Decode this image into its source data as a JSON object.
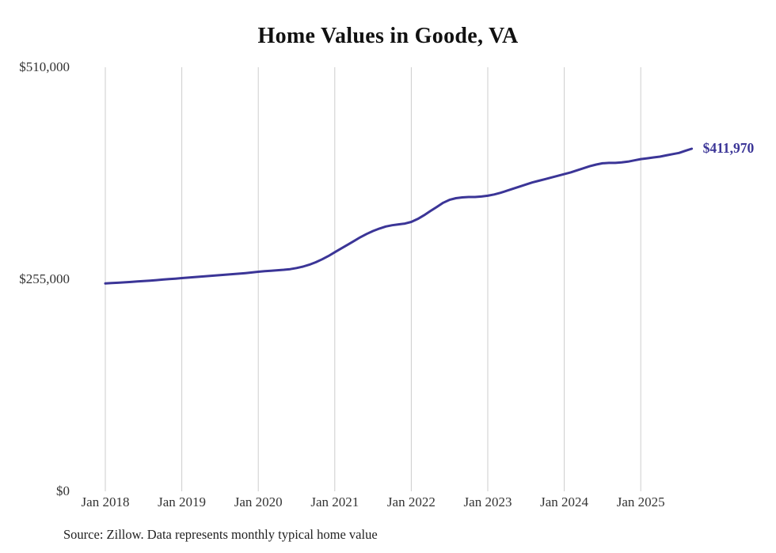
{
  "title": "Home Values in Goode, VA",
  "source_note": "Source: Zillow. Data represents monthly typical home value",
  "colors": {
    "line": "#3b3597",
    "grid": "#cccccc",
    "axis_text": "#333333",
    "background": "#ffffff"
  },
  "chart_data": {
    "type": "line",
    "title": "Home Values in Goode, VA",
    "xlabel": "",
    "ylabel": "",
    "ylim": [
      0,
      510000
    ],
    "y_ticks": [
      0,
      255000,
      510000
    ],
    "y_tick_labels": [
      "$0",
      "$255,000",
      "$510,000"
    ],
    "x_tick_labels": [
      "Jan 2018",
      "Jan 2019",
      "Jan 2020",
      "Jan 2021",
      "Jan 2022",
      "Jan 2023",
      "Jan 2024",
      "Jan 2025"
    ],
    "grid": "vertical-only",
    "legend_position": "none",
    "x_start": "2018-01",
    "x_end": "2025-09",
    "annotation": {
      "text": "$411,970",
      "value": 411970
    },
    "series": [
      {
        "name": "Monthly typical home value",
        "values": [
          250000,
          250400,
          250800,
          251300,
          251800,
          252300,
          252800,
          253400,
          254000,
          254600,
          255200,
          255800,
          256400,
          257000,
          257600,
          258200,
          258800,
          259400,
          260000,
          260600,
          261200,
          261800,
          262400,
          263200,
          264000,
          264700,
          265300,
          265800,
          266400,
          267200,
          268500,
          270200,
          272500,
          275500,
          279000,
          283000,
          287500,
          292000,
          296500,
          301000,
          305500,
          309500,
          313000,
          316000,
          318500,
          320000,
          321000,
          322000,
          324000,
          327500,
          332000,
          337000,
          342000,
          347000,
          350500,
          352500,
          353500,
          354000,
          354000,
          354500,
          355500,
          357000,
          359000,
          361500,
          364000,
          366500,
          369000,
          371500,
          373500,
          375500,
          377500,
          379500,
          381500,
          383500,
          386000,
          388500,
          391000,
          393000,
          394500,
          395000,
          395000,
          395500,
          396500,
          398000,
          399500,
          400500,
          401500,
          402500,
          404000,
          405500,
          407000,
          409500,
          411970
        ]
      }
    ]
  }
}
